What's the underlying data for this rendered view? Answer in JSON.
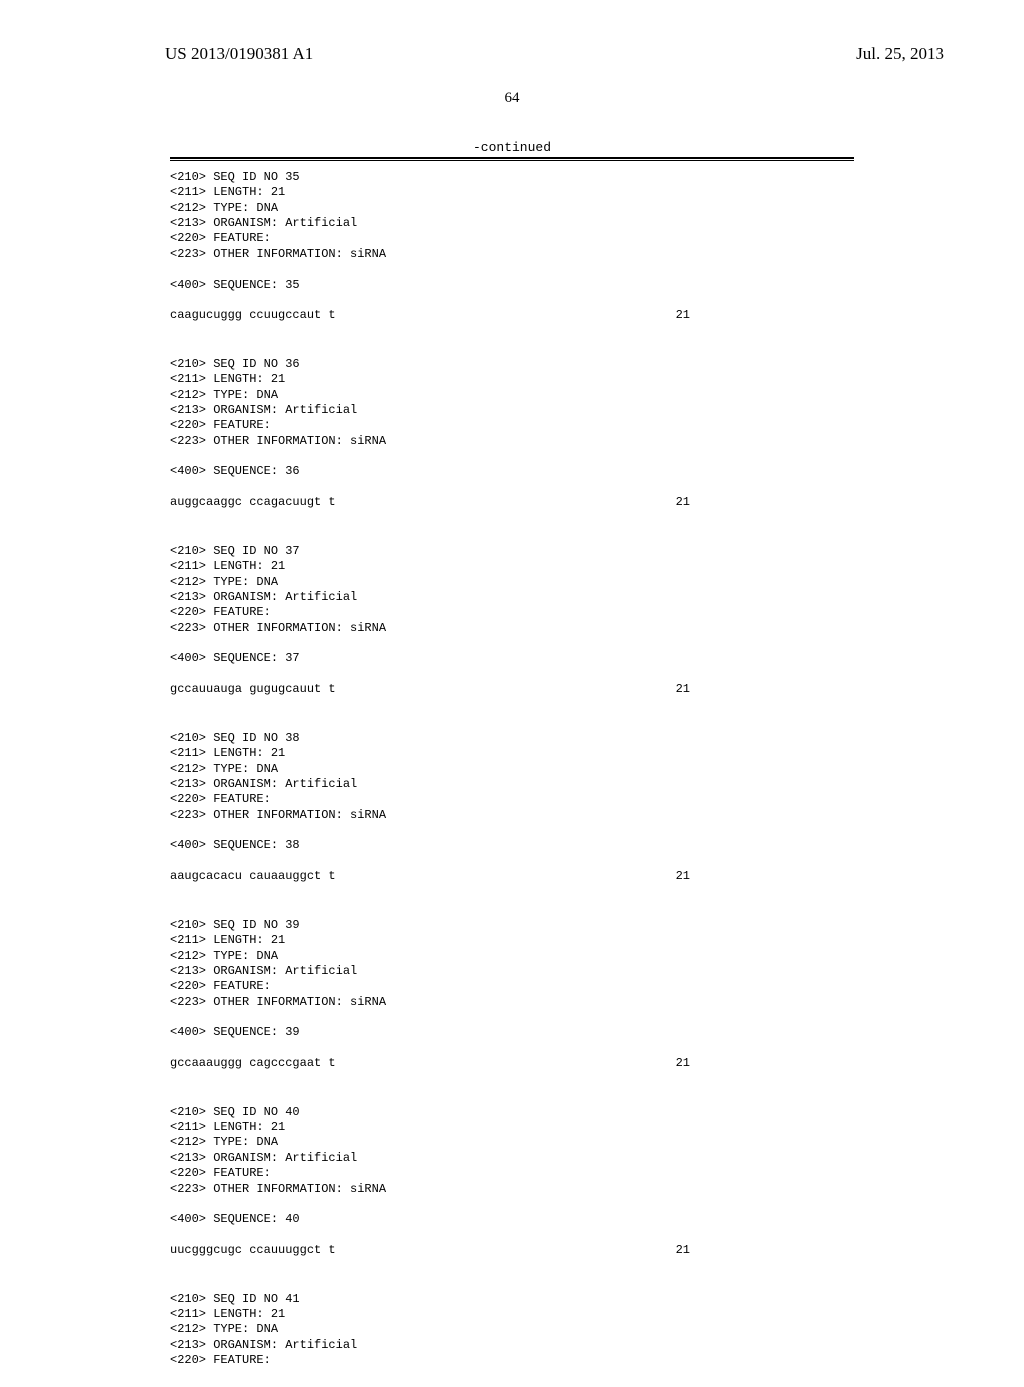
{
  "header": {
    "pub_number": "US 2013/0190381 A1",
    "pub_date": "Jul. 25, 2013",
    "page_number": "64",
    "continued": "-continued"
  },
  "sequences": [
    {
      "id": "35",
      "lines": [
        "<210> SEQ ID NO 35",
        "<211> LENGTH: 21",
        "<212> TYPE: DNA",
        "<213> ORGANISM: Artificial",
        "<220> FEATURE:",
        "<223> OTHER INFORMATION: siRNA"
      ],
      "seq_label": "<400> SEQUENCE: 35",
      "seq_text": "caagucuggg ccuugccaut t",
      "seq_len": "21"
    },
    {
      "id": "36",
      "lines": [
        "<210> SEQ ID NO 36",
        "<211> LENGTH: 21",
        "<212> TYPE: DNA",
        "<213> ORGANISM: Artificial",
        "<220> FEATURE:",
        "<223> OTHER INFORMATION: siRNA"
      ],
      "seq_label": "<400> SEQUENCE: 36",
      "seq_text": "auggcaaggc ccagacuugt t",
      "seq_len": "21"
    },
    {
      "id": "37",
      "lines": [
        "<210> SEQ ID NO 37",
        "<211> LENGTH: 21",
        "<212> TYPE: DNA",
        "<213> ORGANISM: Artificial",
        "<220> FEATURE:",
        "<223> OTHER INFORMATION: siRNA"
      ],
      "seq_label": "<400> SEQUENCE: 37",
      "seq_text": "gccauuauga gugugcauut t",
      "seq_len": "21"
    },
    {
      "id": "38",
      "lines": [
        "<210> SEQ ID NO 38",
        "<211> LENGTH: 21",
        "<212> TYPE: DNA",
        "<213> ORGANISM: Artificial",
        "<220> FEATURE:",
        "<223> OTHER INFORMATION: siRNA"
      ],
      "seq_label": "<400> SEQUENCE: 38",
      "seq_text": "aaugcacacu cauaauggct t",
      "seq_len": "21"
    },
    {
      "id": "39",
      "lines": [
        "<210> SEQ ID NO 39",
        "<211> LENGTH: 21",
        "<212> TYPE: DNA",
        "<213> ORGANISM: Artificial",
        "<220> FEATURE:",
        "<223> OTHER INFORMATION: siRNA"
      ],
      "seq_label": "<400> SEQUENCE: 39",
      "seq_text": "gccaaauggg cagcccgaat t",
      "seq_len": "21"
    },
    {
      "id": "40",
      "lines": [
        "<210> SEQ ID NO 40",
        "<211> LENGTH: 21",
        "<212> TYPE: DNA",
        "<213> ORGANISM: Artificial",
        "<220> FEATURE:",
        "<223> OTHER INFORMATION: siRNA"
      ],
      "seq_label": "<400> SEQUENCE: 40",
      "seq_text": "uucgggcugc ccauuuggct t",
      "seq_len": "21"
    },
    {
      "id": "41",
      "lines": [
        "<210> SEQ ID NO 41",
        "<211> LENGTH: 21",
        "<212> TYPE: DNA",
        "<213> ORGANISM: Artificial",
        "<220> FEATURE:"
      ],
      "seq_label": "",
      "seq_text": "",
      "seq_len": ""
    }
  ]
}
